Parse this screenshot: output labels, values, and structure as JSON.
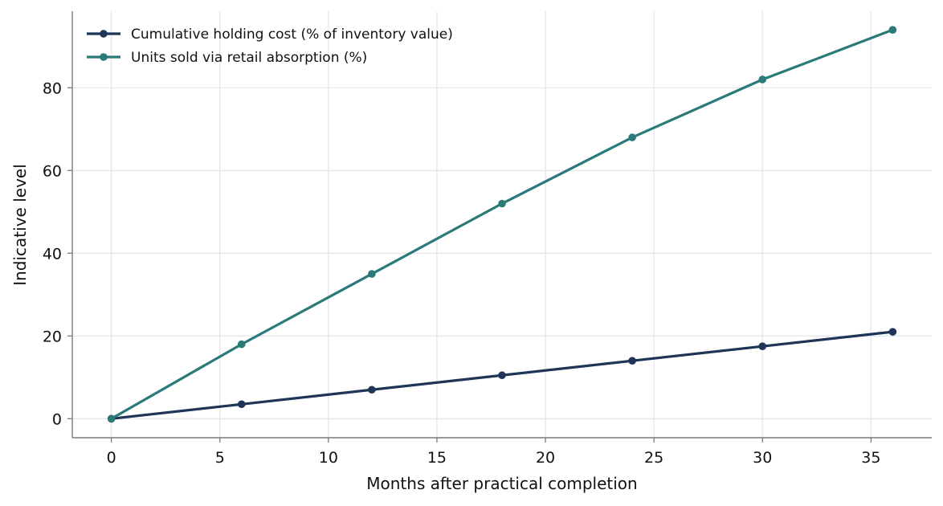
{
  "chart_data": {
    "type": "line",
    "title": "",
    "xlabel": "Months after practical completion",
    "ylabel": "Indicative level",
    "x": [
      0,
      6,
      12,
      18,
      24,
      30,
      36
    ],
    "xlim": [
      -1.8,
      37.8
    ],
    "ylim": [
      -4.6,
      98.5
    ],
    "xticks": [
      0,
      5,
      10,
      15,
      20,
      25,
      30,
      35
    ],
    "yticks": [
      0,
      20,
      40,
      60,
      80
    ],
    "grid": true,
    "legend_position": "top-left",
    "series": [
      {
        "name": "Cumulative holding cost (% of inventory value)",
        "color": "#1f3557",
        "values": [
          0,
          3.5,
          7,
          10.5,
          14,
          17.5,
          21
        ]
      },
      {
        "name": "Units sold via retail absorption (%)",
        "color": "#2a7a78",
        "values": [
          0,
          18,
          35,
          52,
          68,
          82,
          94
        ]
      }
    ]
  }
}
